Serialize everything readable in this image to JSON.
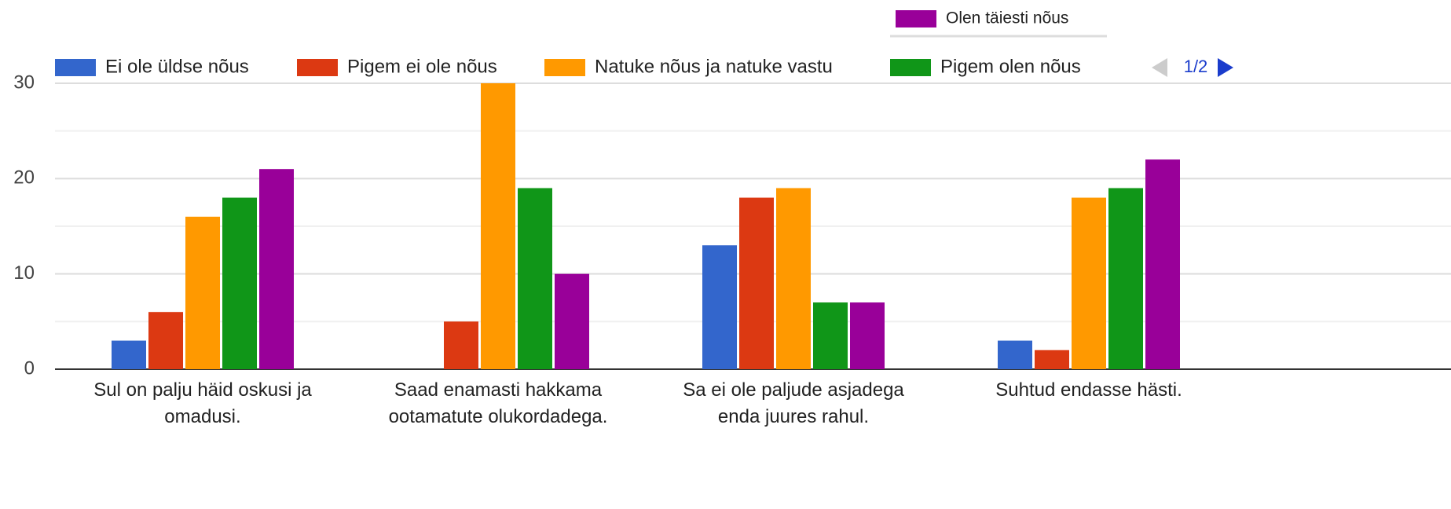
{
  "chart_data": {
    "type": "bar",
    "categories": [
      "Sul on palju häid oskusi ja omadusi.",
      "Saad enamasti hakkama ootamatute olukordadega.",
      "Sa ei ole paljude asjadega enda juures rahul.",
      "Suhtud endasse hästi."
    ],
    "series": [
      {
        "name": "Ei ole üldse nõus",
        "color": "#3366cc",
        "values": [
          3,
          0,
          13,
          3
        ]
      },
      {
        "name": "Pigem ei ole nõus",
        "color": "#dc3912",
        "values": [
          6,
          5,
          18,
          2
        ]
      },
      {
        "name": "Natuke nõus ja natuke vastu",
        "color": "#ff9900",
        "values": [
          16,
          30,
          19,
          18
        ]
      },
      {
        "name": "Pigem olen nõus",
        "color": "#109618",
        "values": [
          18,
          19,
          7,
          19
        ]
      },
      {
        "name": "Olen täiesti nõus",
        "color": "#990099",
        "values": [
          21,
          10,
          7,
          22
        ]
      }
    ],
    "legend_page": "1/2",
    "ylim": [
      0,
      30
    ],
    "yticks": [
      0,
      10,
      20,
      30
    ],
    "minor_yticks": [
      5,
      15,
      25
    ],
    "grid": true
  }
}
